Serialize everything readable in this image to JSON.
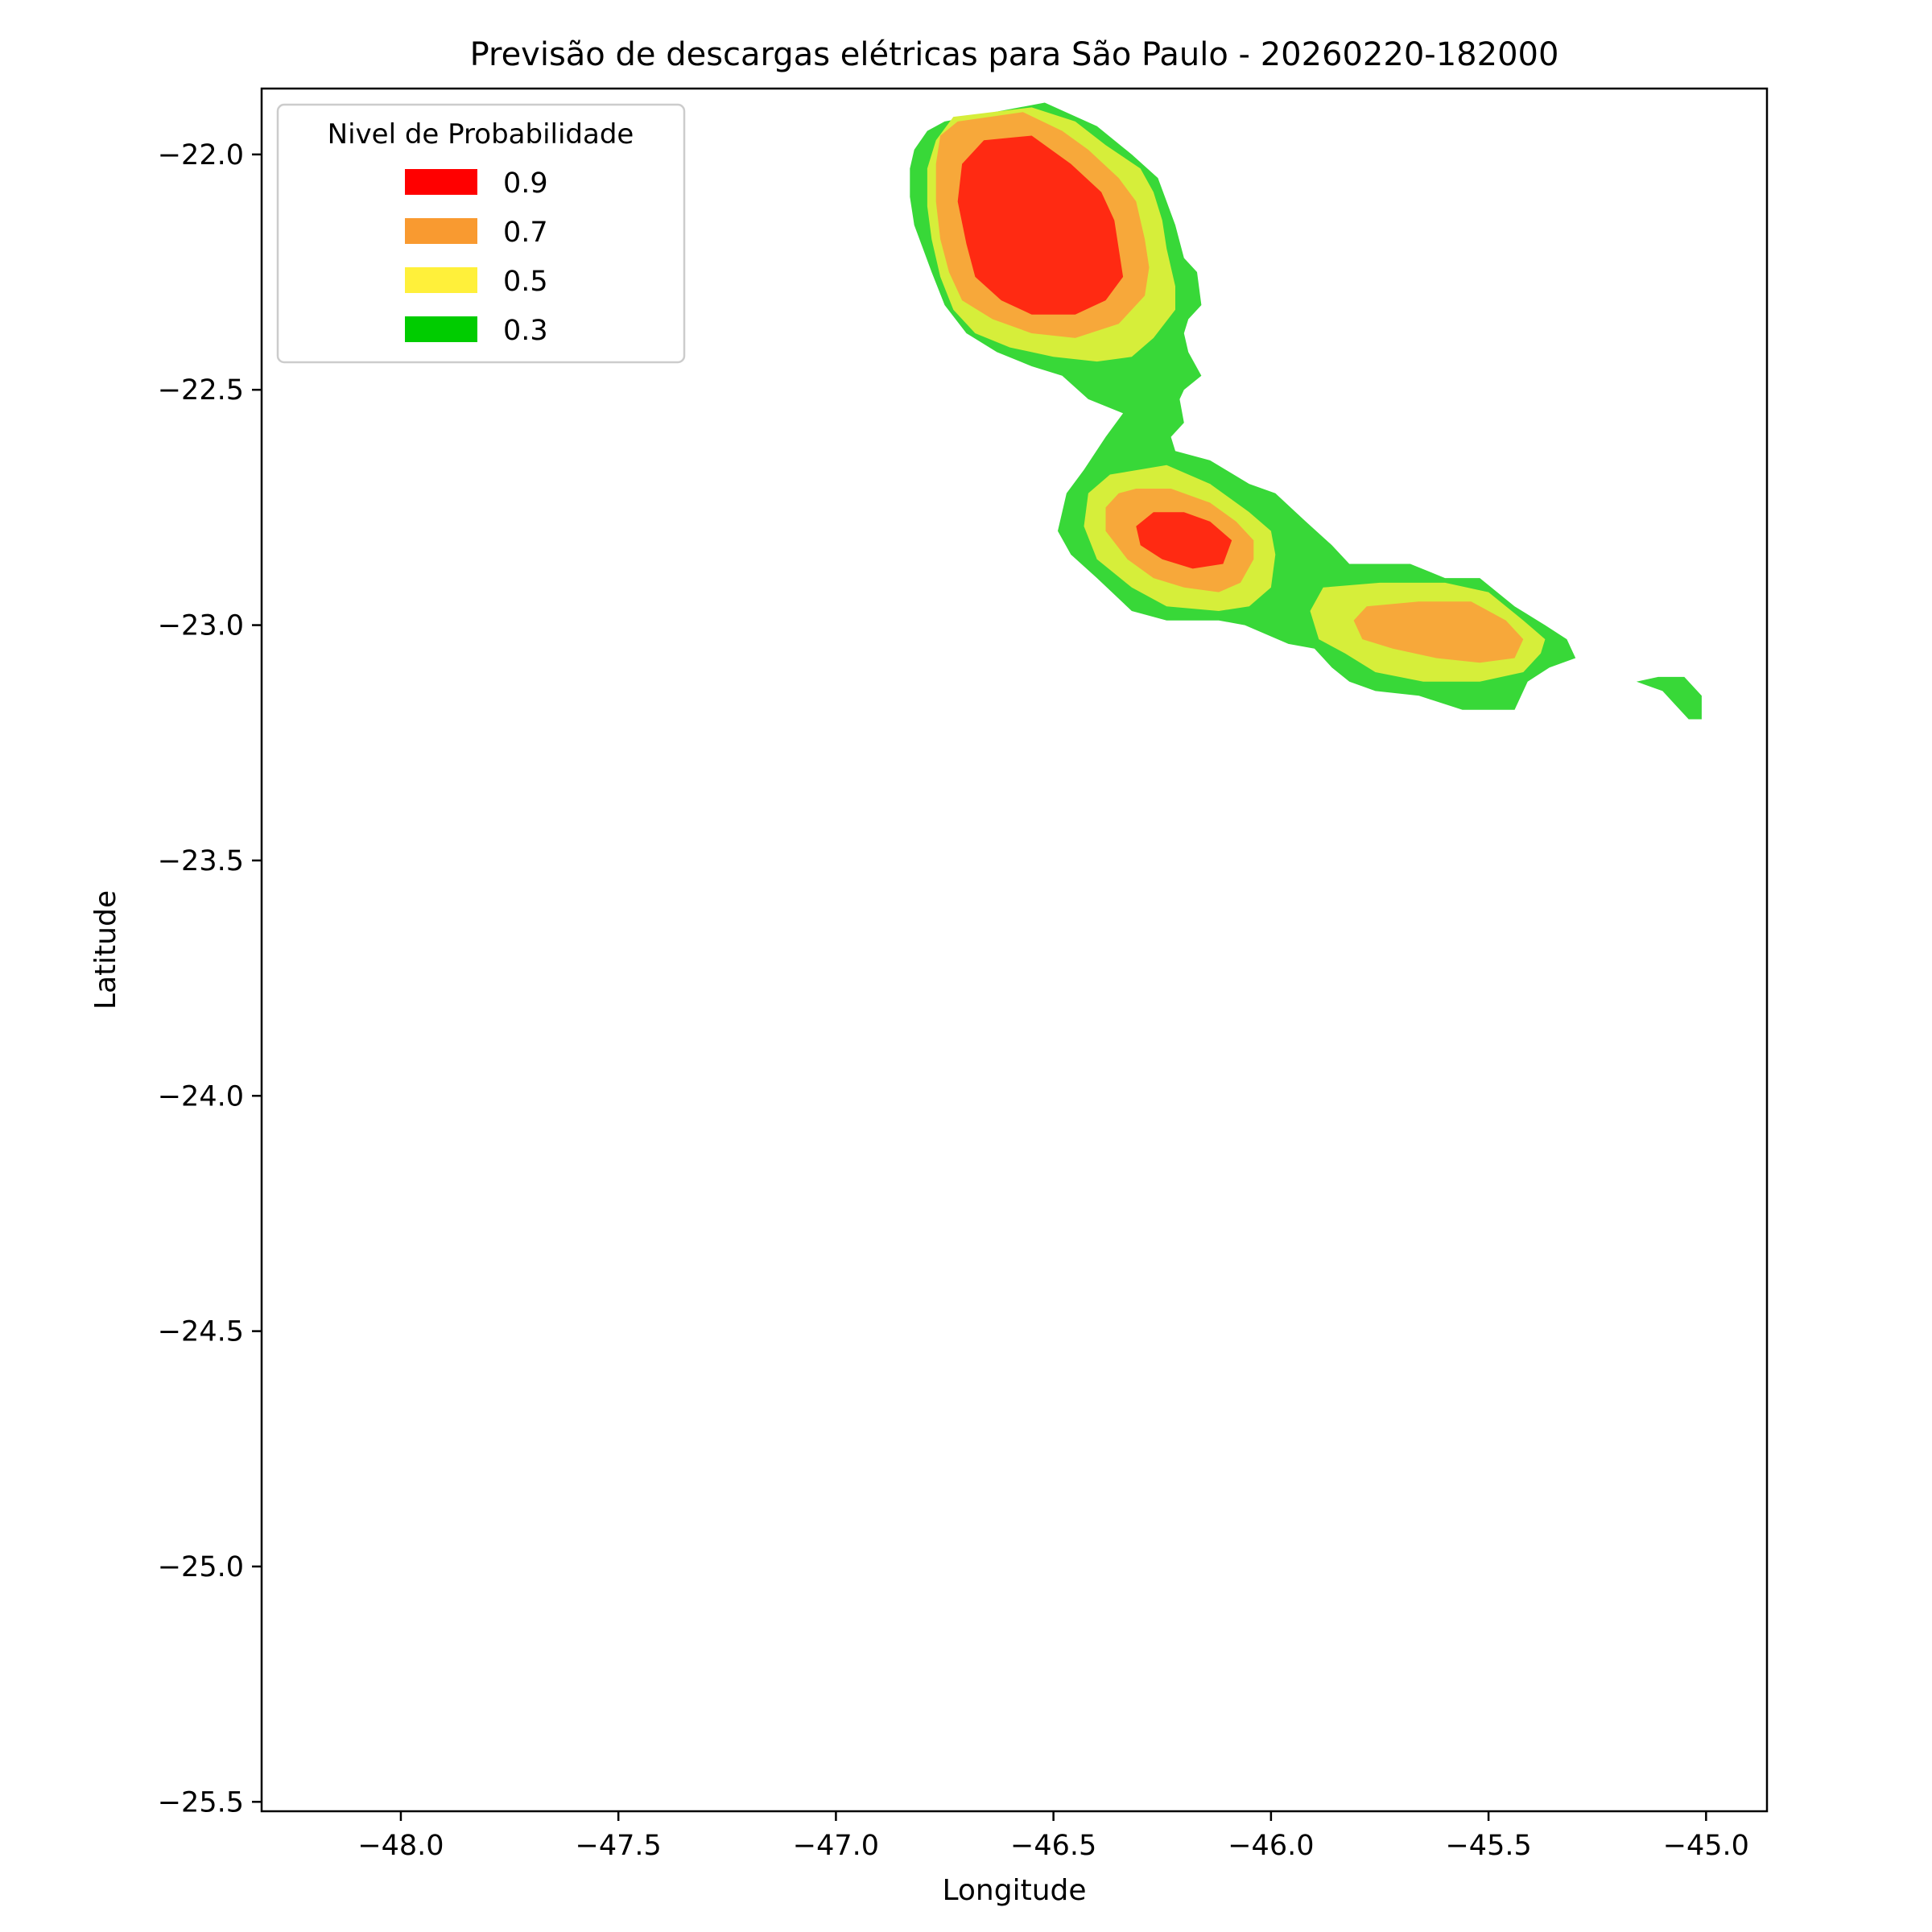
{
  "chart_data": {
    "type": "contourf",
    "title": "Previsão de descargas elétricas para São Paulo - 20260220-182000",
    "xlabel": "Longitude",
    "ylabel": "Latitude",
    "xlim": [
      -48.32,
      -44.86
    ],
    "ylim": [
      -25.52,
      -21.86
    ],
    "xticks": [
      -48.0,
      -47.5,
      -47.0,
      -46.5,
      -46.0,
      -45.5,
      -45.0
    ],
    "xtick_labels": [
      "−48.0",
      "−47.5",
      "−47.0",
      "−46.5",
      "−46.0",
      "−45.5",
      "−45.0"
    ],
    "yticks": [
      -22.0,
      -22.5,
      -23.0,
      -23.5,
      -24.0,
      -24.5,
      -25.0,
      -25.5
    ],
    "ytick_labels": [
      "−22.0",
      "−22.5",
      "−23.0",
      "−23.5",
      "−24.0",
      "−24.5",
      "−25.0",
      "−25.5"
    ],
    "grid": false,
    "legend": {
      "title": "Nivel de Probabilidade",
      "placement": "top-left",
      "entries": [
        {
          "label": "0.9",
          "color": "#ff0000"
        },
        {
          "label": "0.7",
          "color": "#f99a30"
        },
        {
          "label": "0.5",
          "color": "#fff03a"
        },
        {
          "label": "0.3",
          "color": "#00cc00"
        }
      ]
    },
    "fill_colors": {
      "0.3": "#38d838",
      "0.5": "#d6ee3a",
      "0.7": "#f7a83a",
      "0.9": "#ff2a12"
    },
    "contours": [
      {
        "level": "0.3",
        "name": "contour-03-main",
        "points": [
          [
            -46.75,
            -21.93
          ],
          [
            -46.52,
            -21.89
          ],
          [
            -46.4,
            -21.94
          ],
          [
            -46.32,
            -22.0
          ],
          [
            -46.26,
            -22.05
          ],
          [
            -46.24,
            -22.1
          ],
          [
            -46.22,
            -22.15
          ],
          [
            -46.2,
            -22.22
          ],
          [
            -46.17,
            -22.25
          ],
          [
            -46.16,
            -22.32
          ],
          [
            -46.19,
            -22.35
          ],
          [
            -46.2,
            -22.38
          ],
          [
            -46.19,
            -22.42
          ],
          [
            -46.16,
            -22.47
          ],
          [
            -46.2,
            -22.5
          ],
          [
            -46.21,
            -22.52
          ],
          [
            -46.2,
            -22.57
          ],
          [
            -46.23,
            -22.6
          ],
          [
            -46.22,
            -22.63
          ],
          [
            -46.14,
            -22.65
          ],
          [
            -46.05,
            -22.7
          ],
          [
            -45.99,
            -22.72
          ],
          [
            -45.92,
            -22.78
          ],
          [
            -45.86,
            -22.83
          ],
          [
            -45.82,
            -22.87
          ],
          [
            -45.68,
            -22.87
          ],
          [
            -45.6,
            -22.9
          ],
          [
            -45.52,
            -22.9
          ],
          [
            -45.44,
            -22.96
          ],
          [
            -45.37,
            -23.0
          ],
          [
            -45.32,
            -23.03
          ],
          [
            -45.3,
            -23.07
          ],
          [
            -45.36,
            -23.09
          ],
          [
            -45.41,
            -23.12
          ],
          [
            -45.44,
            -23.18
          ],
          [
            -45.56,
            -23.18
          ],
          [
            -45.66,
            -23.15
          ],
          [
            -45.76,
            -23.14
          ],
          [
            -45.82,
            -23.12
          ],
          [
            -45.86,
            -23.09
          ],
          [
            -45.9,
            -23.05
          ],
          [
            -45.96,
            -23.04
          ],
          [
            -46.06,
            -23.0
          ],
          [
            -46.12,
            -22.99
          ],
          [
            -46.24,
            -22.99
          ],
          [
            -46.32,
            -22.97
          ],
          [
            -46.4,
            -22.9
          ],
          [
            -46.46,
            -22.85
          ],
          [
            -46.49,
            -22.8
          ],
          [
            -46.47,
            -22.72
          ],
          [
            -46.43,
            -22.67
          ],
          [
            -46.38,
            -22.6
          ],
          [
            -46.34,
            -22.55
          ],
          [
            -46.42,
            -22.52
          ],
          [
            -46.48,
            -22.47
          ],
          [
            -46.55,
            -22.45
          ],
          [
            -46.63,
            -22.42
          ],
          [
            -46.7,
            -22.38
          ],
          [
            -46.75,
            -22.32
          ],
          [
            -46.78,
            -22.25
          ],
          [
            -46.8,
            -22.2
          ],
          [
            -46.82,
            -22.15
          ],
          [
            -46.83,
            -22.09
          ],
          [
            -46.83,
            -22.03
          ],
          [
            -46.82,
            -21.99
          ],
          [
            -46.79,
            -21.95
          ]
        ]
      },
      {
        "level": "0.3",
        "name": "contour-03-island",
        "points": [
          [
            -45.16,
            -23.12
          ],
          [
            -45.11,
            -23.11
          ],
          [
            -45.05,
            -23.11
          ],
          [
            -45.01,
            -23.15
          ],
          [
            -45.01,
            -23.2
          ],
          [
            -45.04,
            -23.2
          ],
          [
            -45.07,
            -23.17
          ],
          [
            -45.1,
            -23.14
          ],
          [
            -45.13,
            -23.13
          ]
        ]
      },
      {
        "level": "0.5",
        "name": "contour-05-north",
        "points": [
          [
            -46.73,
            -21.92
          ],
          [
            -46.55,
            -21.9
          ],
          [
            -46.45,
            -21.93
          ],
          [
            -46.38,
            -21.98
          ],
          [
            -46.3,
            -22.03
          ],
          [
            -46.27,
            -22.08
          ],
          [
            -46.25,
            -22.14
          ],
          [
            -46.24,
            -22.2
          ],
          [
            -46.22,
            -22.28
          ],
          [
            -46.22,
            -22.33
          ],
          [
            -46.27,
            -22.39
          ],
          [
            -46.32,
            -22.43
          ],
          [
            -46.4,
            -22.44
          ],
          [
            -46.5,
            -22.43
          ],
          [
            -46.6,
            -22.41
          ],
          [
            -46.68,
            -22.38
          ],
          [
            -46.73,
            -22.33
          ],
          [
            -46.76,
            -22.26
          ],
          [
            -46.78,
            -22.18
          ],
          [
            -46.79,
            -22.11
          ],
          [
            -46.79,
            -22.03
          ],
          [
            -46.77,
            -21.97
          ]
        ]
      },
      {
        "level": "0.5",
        "name": "contour-05-middle",
        "points": [
          [
            -46.37,
            -22.68
          ],
          [
            -46.24,
            -22.66
          ],
          [
            -46.14,
            -22.7
          ],
          [
            -46.05,
            -22.76
          ],
          [
            -46.0,
            -22.8
          ],
          [
            -45.99,
            -22.85
          ],
          [
            -46.0,
            -22.92
          ],
          [
            -46.05,
            -22.96
          ],
          [
            -46.12,
            -22.97
          ],
          [
            -46.24,
            -22.96
          ],
          [
            -46.32,
            -22.92
          ],
          [
            -46.4,
            -22.86
          ],
          [
            -46.43,
            -22.79
          ],
          [
            -46.42,
            -22.72
          ]
        ]
      },
      {
        "level": "0.5",
        "name": "contour-05-east",
        "points": [
          [
            -45.88,
            -22.92
          ],
          [
            -45.75,
            -22.91
          ],
          [
            -45.6,
            -22.91
          ],
          [
            -45.5,
            -22.93
          ],
          [
            -45.42,
            -22.99
          ],
          [
            -45.37,
            -23.03
          ],
          [
            -45.38,
            -23.06
          ],
          [
            -45.42,
            -23.1
          ],
          [
            -45.52,
            -23.12
          ],
          [
            -45.65,
            -23.12
          ],
          [
            -45.76,
            -23.1
          ],
          [
            -45.83,
            -23.06
          ],
          [
            -45.89,
            -23.03
          ],
          [
            -45.91,
            -22.97
          ]
        ]
      },
      {
        "level": "0.7",
        "name": "contour-07-north",
        "points": [
          [
            -46.72,
            -21.93
          ],
          [
            -46.57,
            -21.91
          ],
          [
            -46.48,
            -21.95
          ],
          [
            -46.42,
            -21.99
          ],
          [
            -46.35,
            -22.05
          ],
          [
            -46.31,
            -22.1
          ],
          [
            -46.29,
            -22.18
          ],
          [
            -46.28,
            -22.24
          ],
          [
            -46.29,
            -22.3
          ],
          [
            -46.35,
            -22.36
          ],
          [
            -46.45,
            -22.39
          ],
          [
            -46.55,
            -22.38
          ],
          [
            -46.64,
            -22.35
          ],
          [
            -46.71,
            -22.31
          ],
          [
            -46.74,
            -22.25
          ],
          [
            -46.76,
            -22.18
          ],
          [
            -46.77,
            -22.1
          ],
          [
            -46.77,
            -22.02
          ],
          [
            -46.76,
            -21.96
          ]
        ]
      },
      {
        "level": "0.7",
        "name": "contour-07-middle",
        "points": [
          [
            -46.31,
            -22.71
          ],
          [
            -46.23,
            -22.71
          ],
          [
            -46.14,
            -22.74
          ],
          [
            -46.08,
            -22.78
          ],
          [
            -46.04,
            -22.82
          ],
          [
            -46.04,
            -22.86
          ],
          [
            -46.07,
            -22.91
          ],
          [
            -46.12,
            -22.93
          ],
          [
            -46.2,
            -22.92
          ],
          [
            -46.27,
            -22.9
          ],
          [
            -46.33,
            -22.86
          ],
          [
            -46.38,
            -22.8
          ],
          [
            -46.38,
            -22.75
          ],
          [
            -46.35,
            -22.72
          ]
        ]
      },
      {
        "level": "0.7",
        "name": "contour-07-east",
        "points": [
          [
            -45.78,
            -22.96
          ],
          [
            -45.66,
            -22.95
          ],
          [
            -45.54,
            -22.95
          ],
          [
            -45.46,
            -22.99
          ],
          [
            -45.42,
            -23.03
          ],
          [
            -45.44,
            -23.07
          ],
          [
            -45.52,
            -23.08
          ],
          [
            -45.62,
            -23.07
          ],
          [
            -45.72,
            -23.05
          ],
          [
            -45.79,
            -23.03
          ],
          [
            -45.81,
            -22.99
          ]
        ]
      },
      {
        "level": "0.9",
        "name": "contour-09-north",
        "points": [
          [
            -46.66,
            -21.97
          ],
          [
            -46.55,
            -21.96
          ],
          [
            -46.46,
            -22.02
          ],
          [
            -46.39,
            -22.08
          ],
          [
            -46.36,
            -22.14
          ],
          [
            -46.35,
            -22.2
          ],
          [
            -46.34,
            -22.26
          ],
          [
            -46.38,
            -22.31
          ],
          [
            -46.45,
            -22.34
          ],
          [
            -46.55,
            -22.34
          ],
          [
            -46.62,
            -22.31
          ],
          [
            -46.68,
            -22.26
          ],
          [
            -46.7,
            -22.19
          ],
          [
            -46.72,
            -22.1
          ],
          [
            -46.71,
            -22.02
          ]
        ]
      },
      {
        "level": "0.9",
        "name": "contour-09-middle",
        "points": [
          [
            -46.27,
            -22.76
          ],
          [
            -46.2,
            -22.76
          ],
          [
            -46.14,
            -22.78
          ],
          [
            -46.09,
            -22.82
          ],
          [
            -46.11,
            -22.87
          ],
          [
            -46.18,
            -22.88
          ],
          [
            -46.25,
            -22.86
          ],
          [
            -46.3,
            -22.83
          ],
          [
            -46.31,
            -22.79
          ]
        ]
      }
    ]
  }
}
